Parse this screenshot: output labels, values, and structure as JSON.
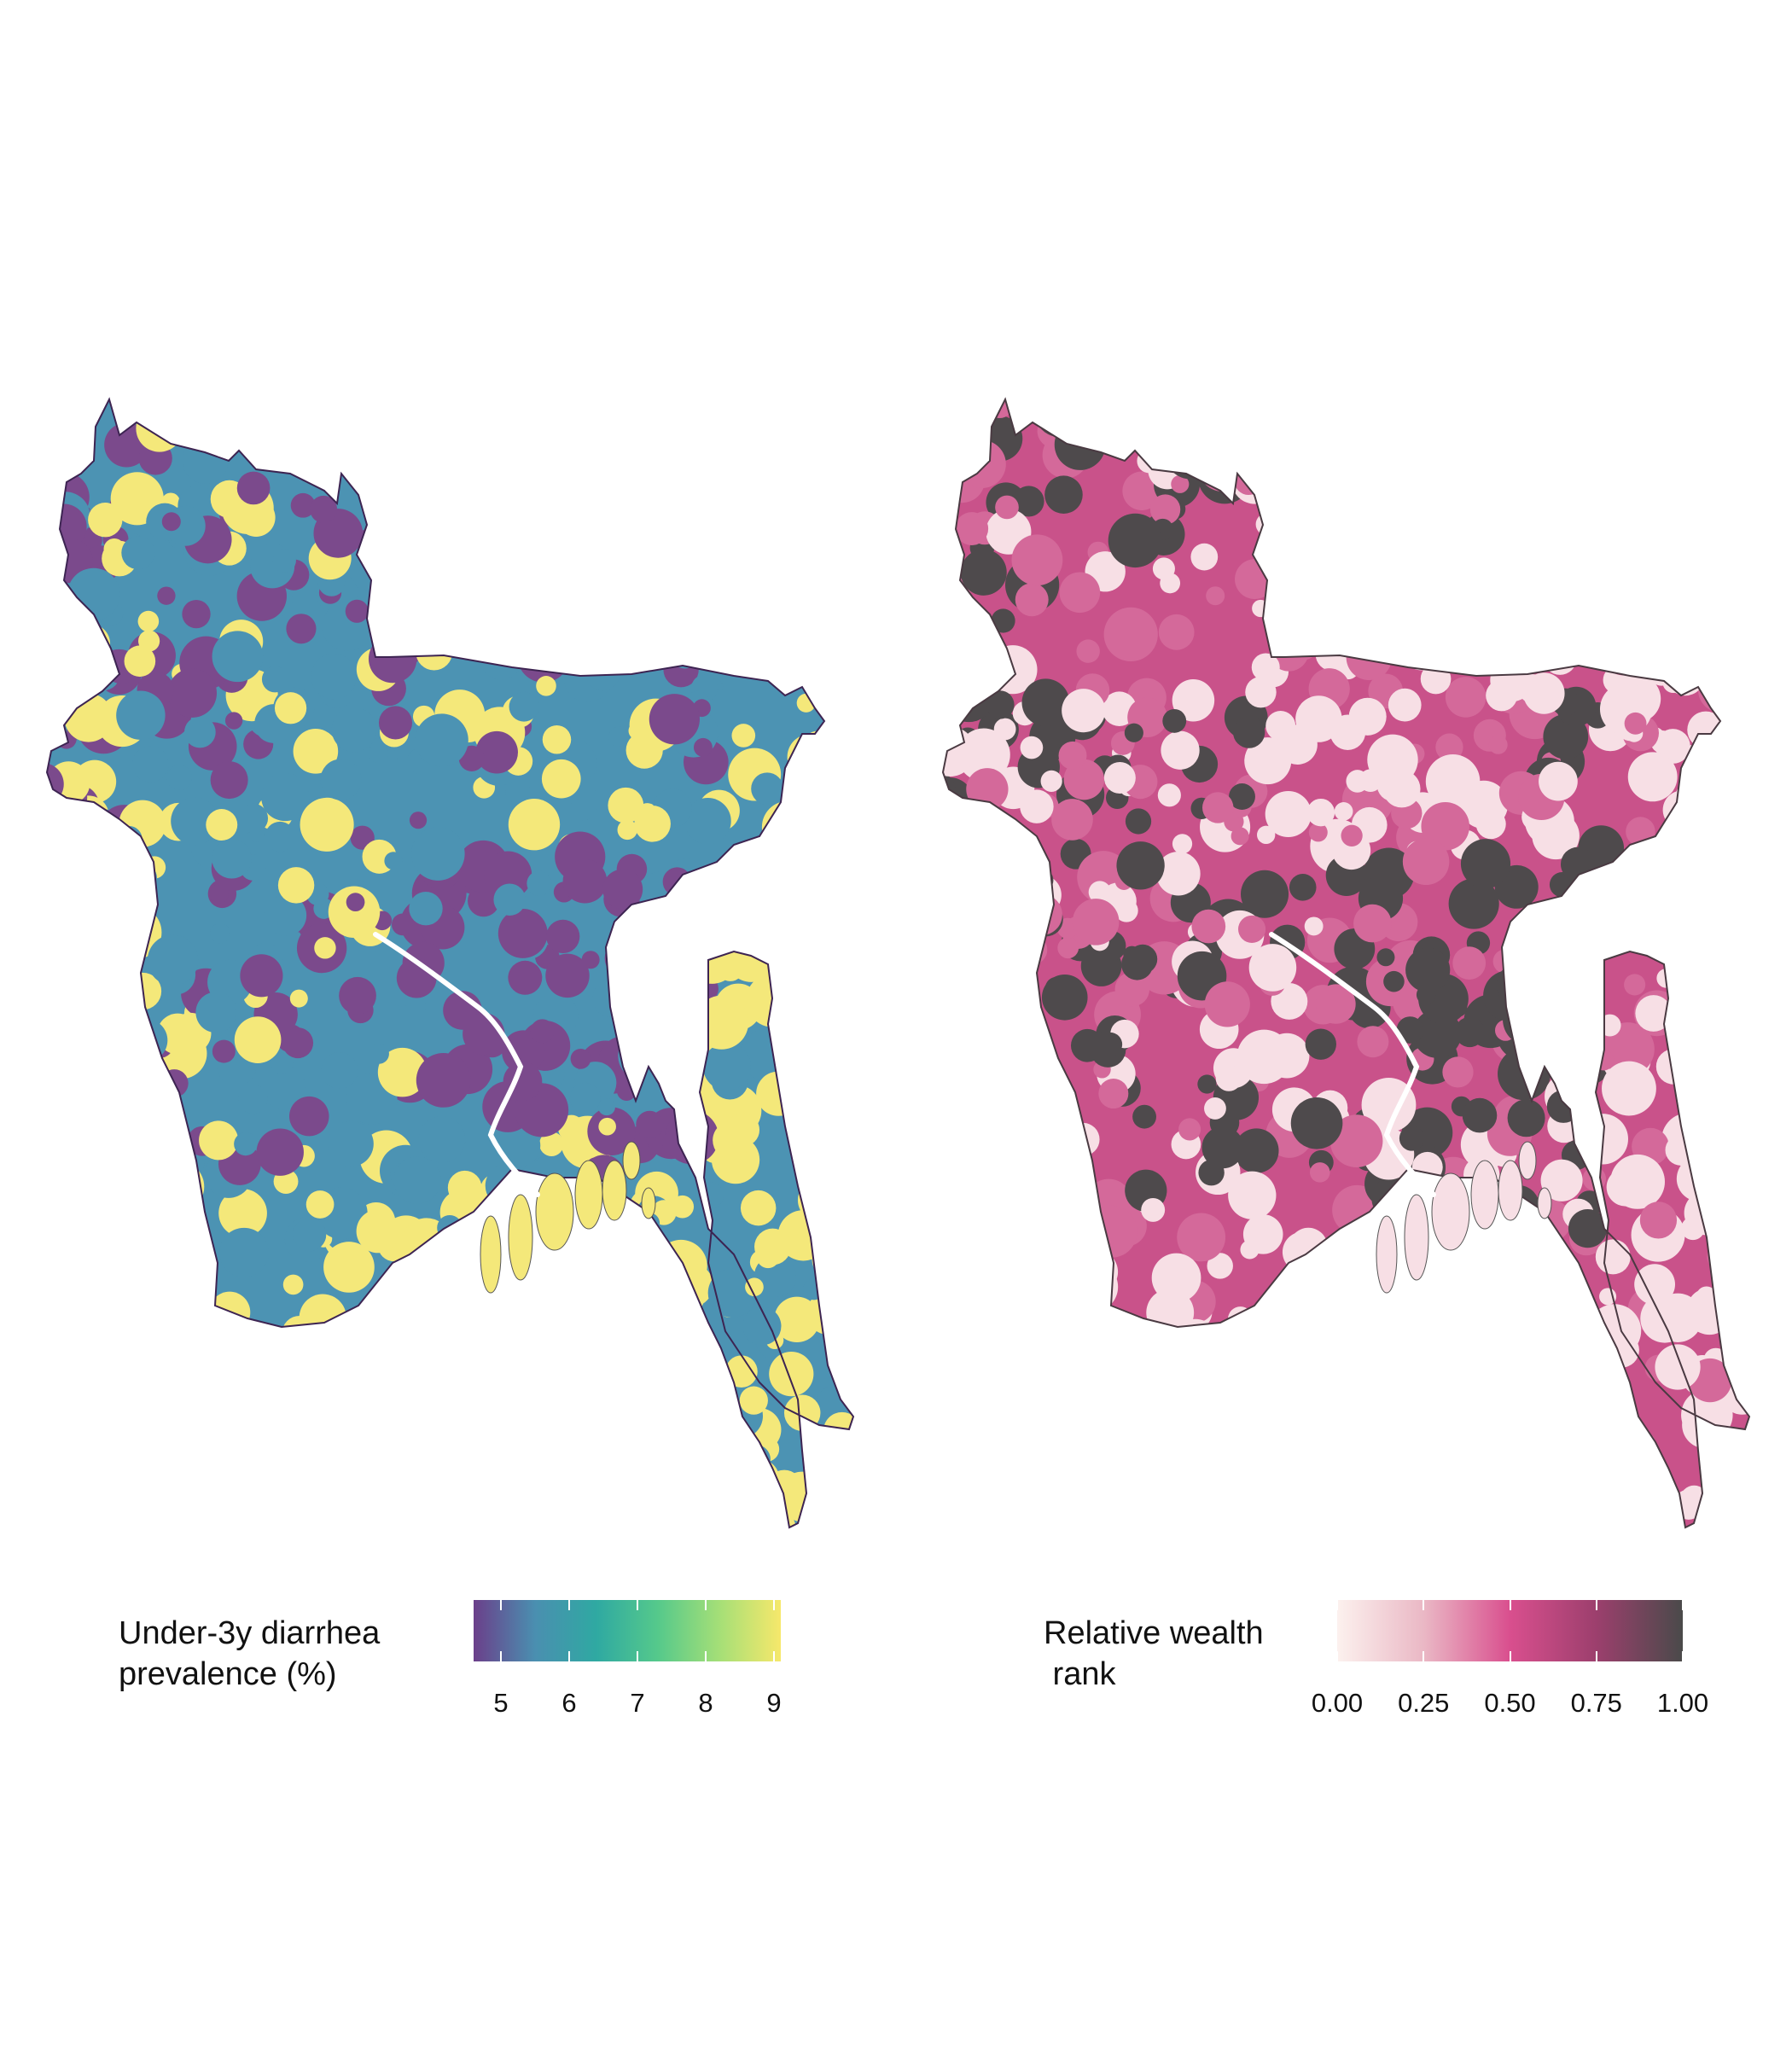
{
  "maps": [
    {
      "id": "diarrhea",
      "legend": {
        "title_line1": "Under-3y diarrhea",
        "title_line2": "prevalence (%)",
        "ticks": [
          "5",
          "6",
          "7",
          "8",
          "9"
        ],
        "tick_values": [
          5,
          6,
          7,
          8,
          9
        ],
        "range": [
          4.6,
          9.1
        ],
        "gradient_colors": [
          "#6b3f8a",
          "#4a8fb0",
          "#2fa9a2",
          "#55c98b",
          "#a5df77",
          "#f6e86b"
        ]
      },
      "palette": {
        "low": "#7b4a8c",
        "mid": "#4c93b3",
        "high": "#f4e87a",
        "border": "#3d2452"
      }
    },
    {
      "id": "wealth",
      "legend": {
        "title_line1": "Relative wealth",
        "title_line2": " rank",
        "ticks": [
          "0.00",
          "0.25",
          "0.50",
          "0.75",
          "1.00"
        ],
        "tick_values": [
          0,
          0.25,
          0.5,
          0.75,
          1
        ],
        "range": [
          0,
          1
        ],
        "gradient_colors": [
          "#fcf1ee",
          "#eab8c5",
          "#d94f8e",
          "#9c3f6d",
          "#4a4a4a"
        ]
      },
      "palette": {
        "low": "#f7dfe5",
        "mid": "#d4699a",
        "high": "#4e4a4c",
        "border": "#6b5560"
      }
    }
  ]
}
